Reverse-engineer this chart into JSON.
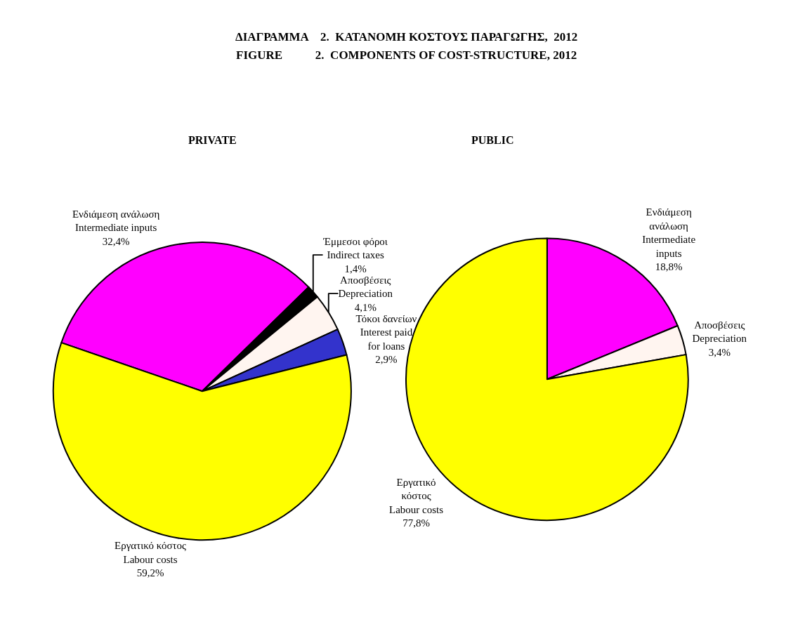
{
  "chart_data": [
    {
      "type": "pie",
      "title": "PRIVATE",
      "annotations": [
        "ΔΙΑΓΡΑΜΜΑ    2.  ΚΑΤΑΝΟΜΗ ΚΟΣΤΟΥΣ ΠΑΡΑΓΩΓΗΣ,  2012",
        "FIGURE           2.  COMPONENTS OF COST-STRUCTURE, 2012"
      ],
      "categories": [
        "Ενδιάμεση ανάλωση\nIntermediate inputs",
        "Έμμεσοι φόροι\nIndirect taxes",
        "Αποσβέσεις\nDepreciation",
        "Τόκοι δανείων\nInterest paid\nfor loans",
        "Εργατικό κόστος\nLabour costs"
      ],
      "values": [
        32.4,
        1.4,
        4.1,
        2.9,
        59.2
      ],
      "value_labels": [
        "32,4%",
        "1,4%",
        "4,1%",
        "2,9%",
        "59,2%"
      ],
      "colors": [
        "#ff00ff",
        "#000000",
        "#fff5f0",
        "#3333cc",
        "#ffff00"
      ],
      "legend": false
    },
    {
      "type": "pie",
      "title": "PUBLIC",
      "categories": [
        "Ενδιάμεση\nανάλωση\nIntermediate\ninputs",
        "Αποσβέσεις\nDepreciation",
        "Εργατικό\nκόστος\nLabour costs"
      ],
      "values": [
        18.8,
        3.4,
        77.8
      ],
      "value_labels": [
        "18,8%",
        "3,4%",
        "77,8%"
      ],
      "colors": [
        "#ff00ff",
        "#fff5f0",
        "#ffff00"
      ],
      "legend": false
    }
  ]
}
